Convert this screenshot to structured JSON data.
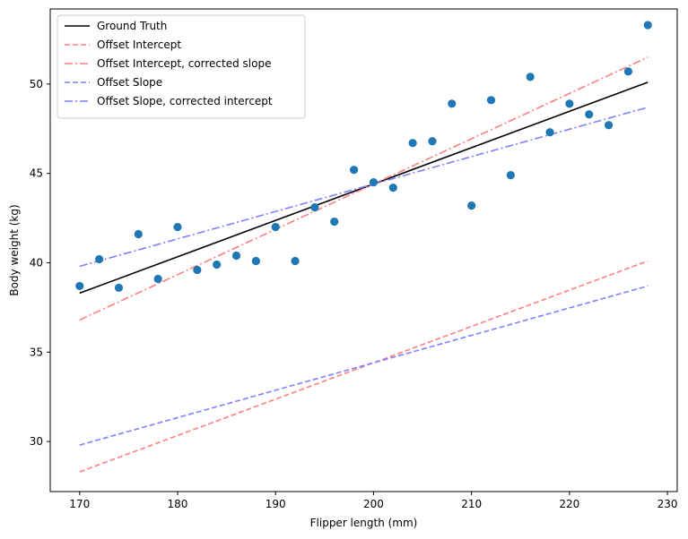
{
  "chart_data": {
    "type": "scatter",
    "title": "",
    "xlabel": "Flipper length (mm)",
    "ylabel": "Body weight (kg)",
    "xlim": [
      167,
      231
    ],
    "ylim": [
      27.2,
      54.2
    ],
    "xticks": [
      170,
      180,
      190,
      200,
      210,
      220,
      230
    ],
    "yticks": [
      30,
      35,
      40,
      45,
      50
    ],
    "grid": false,
    "legend_position": "upper-left",
    "scatter": {
      "color": "#1f77b4",
      "x": [
        170,
        172,
        174,
        176,
        178,
        180,
        182,
        184,
        186,
        188,
        190,
        192,
        194,
        196,
        198,
        200,
        202,
        204,
        206,
        208,
        210,
        212,
        214,
        216,
        218,
        220,
        222,
        224,
        226,
        228
      ],
      "y": [
        38.7,
        40.2,
        38.6,
        41.6,
        39.1,
        42.0,
        39.6,
        39.9,
        40.4,
        40.1,
        42.0,
        40.1,
        43.1,
        42.3,
        45.2,
        44.5,
        44.2,
        46.7,
        46.8,
        48.9,
        43.2,
        49.1,
        44.9,
        50.4,
        47.3,
        48.9,
        48.3,
        47.7,
        50.7,
        53.3
      ]
    },
    "series": [
      {
        "name": "Ground Truth",
        "color": "#000000",
        "dash": "solid",
        "x": [
          170,
          228
        ],
        "y": [
          38.3,
          50.1
        ]
      },
      {
        "name": "Offset Intercept",
        "color": "#ff7f7f",
        "dash": "dashed",
        "x": [
          170,
          228
        ],
        "y": [
          28.3,
          40.1
        ]
      },
      {
        "name": "Offset Intercept, corrected slope",
        "color": "#ff7f7f",
        "dash": "dashdot",
        "x": [
          170,
          228
        ],
        "y": [
          36.8,
          51.5
        ]
      },
      {
        "name": "Offset Slope",
        "color": "#7f7fff",
        "dash": "dashed",
        "x": [
          170,
          228
        ],
        "y": [
          29.8,
          38.7
        ]
      },
      {
        "name": "Offset Slope, corrected intercept",
        "color": "#7f7fff",
        "dash": "dashdot",
        "x": [
          170,
          228
        ],
        "y": [
          39.8,
          48.7
        ]
      }
    ]
  }
}
